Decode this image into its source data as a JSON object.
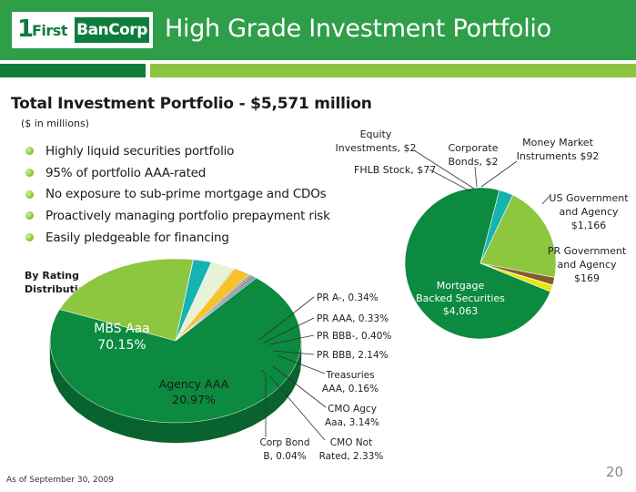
{
  "header": {
    "logo_number": "1",
    "logo_first": "First",
    "logo_bancorp": "BanCorp",
    "title": "High Grade Investment Portfolio"
  },
  "subtitle": "Total Investment Portfolio - $5,571 million",
  "units_note": "($ in millions)",
  "bullets": [
    "Highly liquid securities portfolio",
    "95% of portfolio AAA-rated",
    "No exposure to sub-prime mortgage and CDOs",
    "Proactively managing portfolio prepayment risk",
    "Easily pledgeable for financing"
  ],
  "rating_label": [
    "By Rating",
    "Distribution:"
  ],
  "footnote": "As of September 30, 2009",
  "page_number": "20",
  "chart_data": [
    {
      "type": "pie",
      "title": "By Rating Distribution:",
      "slices": [
        {
          "label": [
            "MBS Aaa",
            "70.15%"
          ],
          "value": 70.15,
          "color": "#0b8a40"
        },
        {
          "label": [
            "Agency AAA",
            "20.97%"
          ],
          "value": 20.97,
          "color": "#8dc63f"
        },
        {
          "label": [
            "Corp Bond",
            "B, 0.04%"
          ],
          "value": 0.04,
          "color": "#a8cf8a"
        },
        {
          "label": [
            "CMO Not",
            "Rated, 2.33%"
          ],
          "value": 2.33,
          "color": "#16b3b3"
        },
        {
          "label": [
            "CMO Agcy",
            "Aaa, 3.14%"
          ],
          "value": 3.14,
          "color": "#e8f2d6"
        },
        {
          "label": [
            "Treasuries",
            "AAA, 0.16%"
          ],
          "value": 0.16,
          "color": "#c9b36a"
        },
        {
          "label": [
            "PR BBB, 2.14%"
          ],
          "value": 2.14,
          "color": "#f6c12a"
        },
        {
          "label": [
            "PR BBB-, 0.40%"
          ],
          "value": 0.4,
          "color": "#7fa3d6"
        },
        {
          "label": [
            "PR AAA, 0.33%"
          ],
          "value": 0.33,
          "color": "#b36a3a"
        },
        {
          "label": [
            "PR A-, 0.34%"
          ],
          "value": 0.34,
          "color": "#5b9bd5"
        }
      ]
    },
    {
      "type": "pie",
      "title": "Total Investment Portfolio - $5,571 million",
      "unit": "$ in millions",
      "slices": [
        {
          "label": [
            "Mortgage",
            "Backed Securities",
            "$4,063"
          ],
          "value": 4063,
          "color": "#0b8a40"
        },
        {
          "label": [
            "PR Government",
            "and Agency",
            "$169"
          ],
          "value": 169,
          "color": "#14b3ad"
        },
        {
          "label": [
            "US Government",
            "and Agency",
            "$1,166"
          ],
          "value": 1166,
          "color": "#8dc63f"
        },
        {
          "label": [
            "Money Market",
            "Instruments $92"
          ],
          "value": 92,
          "color": "#8a5a2b"
        },
        {
          "label": [
            "Corporate",
            "Bonds,  $2"
          ],
          "value": 2,
          "color": "#6b8e23"
        },
        {
          "label": [
            "Equity",
            "Investments,  $2"
          ],
          "value": 2,
          "color": "#9ab03a"
        },
        {
          "label": [
            "FHLB Stock,  $77"
          ],
          "value": 77,
          "color": "#e5e800"
        }
      ]
    }
  ]
}
